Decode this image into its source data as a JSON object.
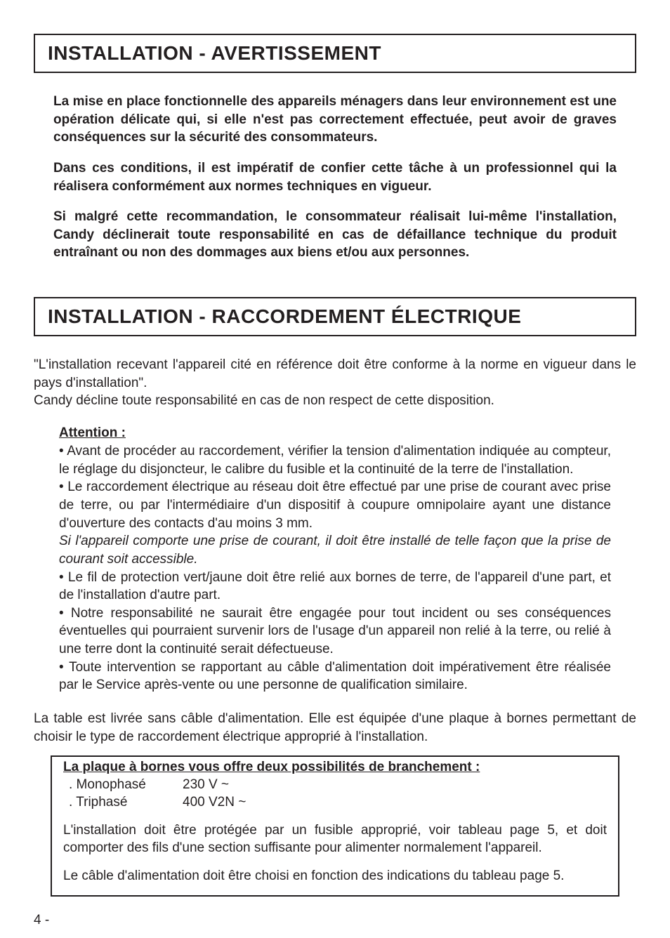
{
  "section1": {
    "title": "INSTALLATION - AVERTISSEMENT",
    "paras": [
      "La mise en place fonctionnelle des appareils ménagers dans leur environnement est une opération délicate qui, si elle n'est pas correctement effectuée, peut avoir de graves conséquences sur la sécurité des consommateurs.",
      "Dans ces conditions, il est impératif de confier cette tâche à un professionnel qui la réalisera conformément aux normes techniques en vigueur.",
      "Si malgré cette recommandation, le consommateur réalisait lui-même l'installation, Candy déclinerait toute responsabilité en cas de défaillance technique du produit entraînant ou non des dommages aux biens et/ou aux personnes."
    ]
  },
  "section2": {
    "title": "INSTALLATION - RACCORDEMENT ÉLECTRIQUE",
    "intro": "\"L'installation recevant l'appareil cité en référence doit être conforme à la norme en vigueur dans le pays d'installation\".\nCandy décline toute responsabilité en cas de non respect de cette disposition.",
    "attention_label": "Attention :",
    "bullets": [
      "• Avant de procéder au raccordement, vérifier la tension d'alimentation indiquée au compteur, le réglage du disjoncteur, le calibre du fusible et la continuité de la terre de l'installation.",
      "• Le raccordement électrique au réseau doit être effectué par une prise de courant avec prise de terre, ou par l'intermédiaire d'un dispositif à coupure omnipolaire ayant une distance d'ouverture des contacts d'au moins 3 mm."
    ],
    "italic_line": "Si l'appareil comporte une prise de courant, il doit être installé de telle façon que la prise de courant soit accessible.",
    "bullets2": [
      "• Le fil de protection vert/jaune doit être relié aux bornes de terre, de l'appareil d'une part, et de l'installation d'autre part.",
      "• Notre responsabilité ne saurait être engagée pour tout incident ou ses conséquences éventuelles qui pourraient survenir lors de l'usage d'un appareil non relié à la terre, ou relié à une terre dont la continuité serait défectueuse.",
      "• Toute intervention se rapportant au câble d'alimentation doit impérativement être réalisée par le Service après-vente ou une personne de qualification similaire."
    ],
    "after": "La table est livrée sans câble d'alimentation. Elle est équipée d'une plaque à bornes permettant de choisir le type de raccordement électrique approprié à l'installation."
  },
  "inset": {
    "title": "La plaque à bornes vous offre deux possibilités de branchement :",
    "rows": [
      {
        "label": ". Monophasé",
        "value": "230 V ~"
      },
      {
        "label": ". Triphasé",
        "value": "400 V2N ~"
      }
    ],
    "paras": [
      "L'installation doit être protégée par un fusible approprié, voir tableau page 5, et doit comporter des fils d'une section suffisante pour alimenter normalement l'appareil.",
      "Le câble d'alimentation doit être choisi en fonction des indications du tableau page 5."
    ]
  },
  "page_number": "4 -",
  "colors": {
    "text": "#231f20",
    "bg": "#ffffff",
    "border": "#231f20"
  }
}
